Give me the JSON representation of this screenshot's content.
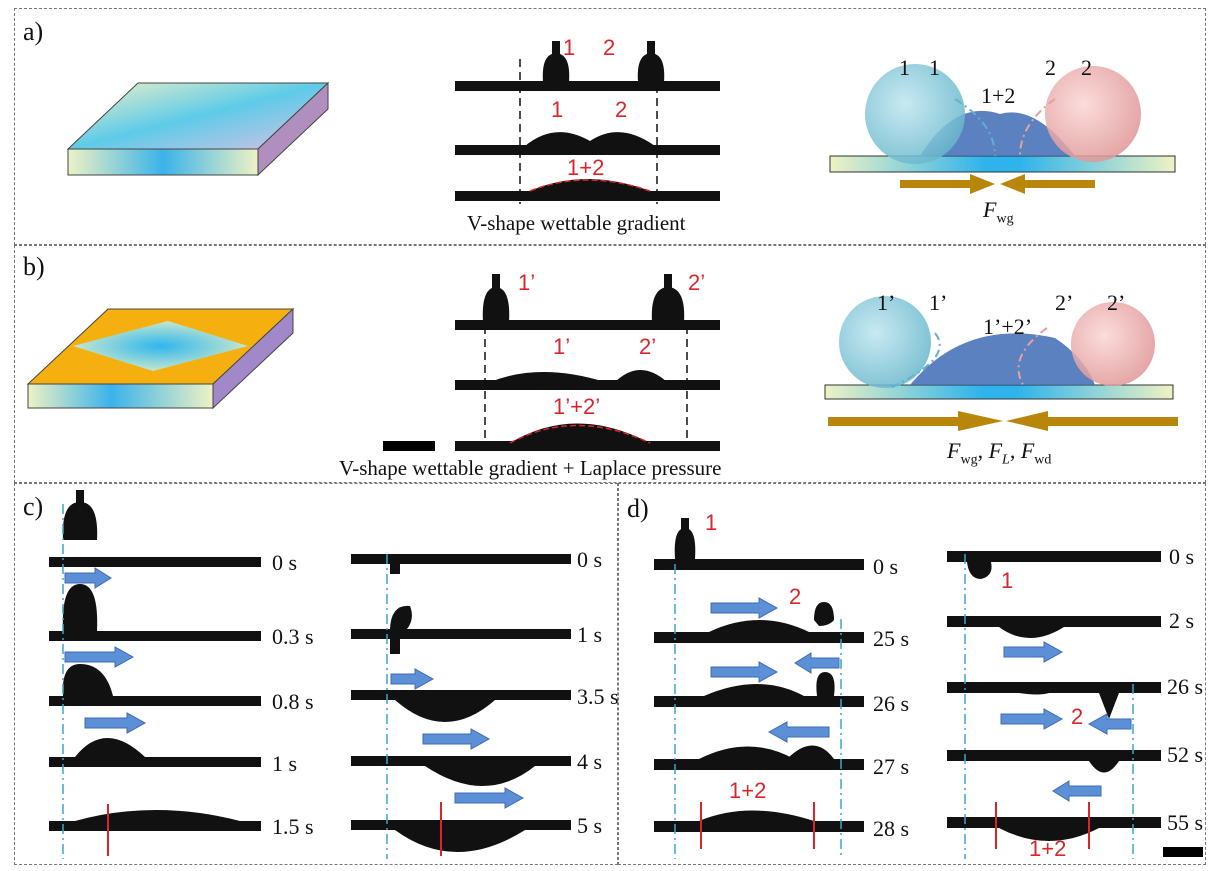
{
  "panel_a": {
    "label": "a)",
    "caption": "V-shape wettable gradient",
    "drop_labels_top": [
      "1",
      "2"
    ],
    "drop_labels_mid": [
      "1",
      "2"
    ],
    "drop_label_merged": "1+2",
    "schematic_labels": [
      "1",
      "1",
      "1+2",
      "2",
      "2"
    ],
    "force_main": "F",
    "force_sub": "wg"
  },
  "panel_b": {
    "label": "b)",
    "caption": "V-shape wettable gradient + Laplace pressure",
    "drop_labels_top": [
      "1’",
      "2’"
    ],
    "drop_labels_mid": [
      "1’",
      "2’"
    ],
    "drop_label_merged": "1’+2’",
    "schematic_labels": [
      "1’",
      "1’",
      "1’+2’",
      "2’",
      "2’"
    ],
    "force_f1": "F",
    "force_s1": "wg",
    "force_f2": "F",
    "force_s2": "L",
    "force_f3": "F",
    "force_s3": "wd",
    "comma": ","
  },
  "panel_c": {
    "label": "c)",
    "times_left": [
      "0 s",
      "0.3 s",
      "0.8 s",
      "1 s",
      "1.5 s"
    ],
    "times_right": [
      "0 s",
      "1 s",
      "3.5 s",
      "4 s",
      "5 s"
    ]
  },
  "panel_d": {
    "label": "d)",
    "times_left": [
      "0 s",
      "25 s",
      "26 s",
      "27 s",
      "28 s"
    ],
    "times_right": [
      "0 s",
      "2 s",
      "26 s",
      "52 s",
      "55 s"
    ],
    "left_labels": [
      "1",
      "2",
      "1+2"
    ],
    "right_labels": [
      "1",
      "2",
      "1+2"
    ]
  },
  "colors": {
    "accent_red": "#d8262b",
    "arrow_blue": "#5b8fd6",
    "gold": "#b8860b",
    "drop_blue": "#7fc4d8",
    "drop_pink": "#e8a0a0"
  }
}
